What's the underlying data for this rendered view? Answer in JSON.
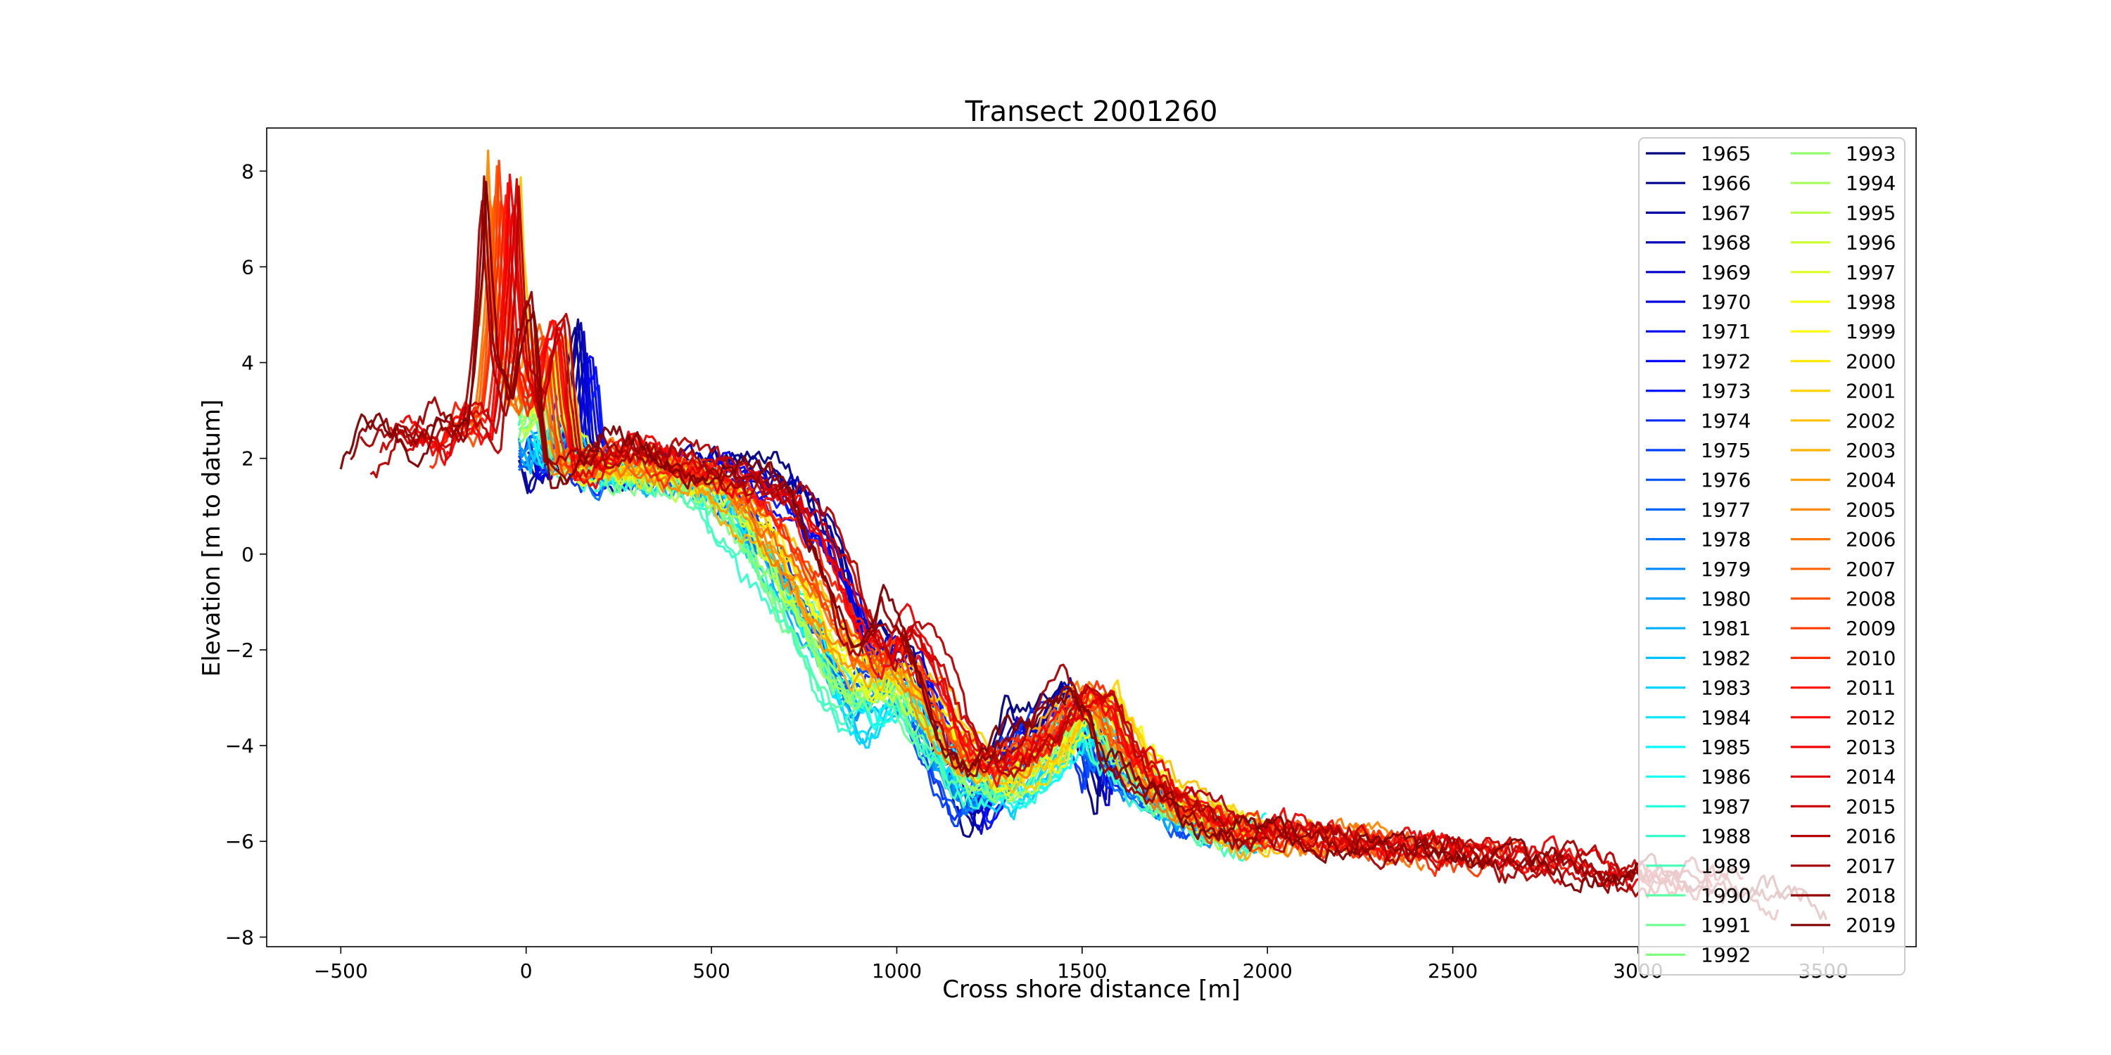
{
  "chart_data": {
    "type": "line",
    "title": "Transect 2001260",
    "xlabel": "Cross shore distance [m]",
    "ylabel": "Elevation [m to datum]",
    "xlim": [
      -700,
      3750
    ],
    "ylim": [
      -8.2,
      8.9
    ],
    "xticks": [
      -500,
      0,
      500,
      1000,
      1500,
      2000,
      2500,
      3000,
      3500
    ],
    "yticks": [
      -8,
      -6,
      -4,
      -2,
      0,
      2,
      4,
      6,
      8
    ],
    "xtick_labels": [
      "−500",
      "0",
      "500",
      "1000",
      "1500",
      "2000",
      "2500",
      "3000",
      "3500"
    ],
    "ytick_labels": [
      "−8",
      "−6",
      "−4",
      "−2",
      "0",
      "2",
      "4",
      "6",
      "8"
    ],
    "grid": false,
    "legend_position": "top-right",
    "legend_columns": 2,
    "colormap": "jet",
    "series_names": [
      "1965",
      "1966",
      "1967",
      "1968",
      "1969",
      "1970",
      "1971",
      "1972",
      "1973",
      "1974",
      "1975",
      "1976",
      "1977",
      "1978",
      "1979",
      "1980",
      "1981",
      "1982",
      "1983",
      "1984",
      "1985",
      "1986",
      "1987",
      "1988",
      "1989",
      "1990",
      "1991",
      "1992",
      "1993",
      "1994",
      "1995",
      "1996",
      "1997",
      "1998",
      "1999",
      "2000",
      "2001",
      "2002",
      "2003",
      "2004",
      "2005",
      "2006",
      "2007",
      "2008",
      "2009",
      "2010",
      "2011",
      "2012",
      "2013",
      "2014",
      "2015",
      "2016",
      "2017",
      "2018",
      "2019"
    ],
    "representative_profiles": {
      "early_years_1965_1975": {
        "x": [
          -20,
          0,
          50,
          100,
          120,
          140,
          160,
          200,
          300,
          500,
          650,
          750,
          850,
          900,
          950,
          1000,
          1050,
          1100,
          1150,
          1200,
          1250,
          1300,
          1350,
          1400,
          1450,
          1500,
          1550
        ],
        "y": [
          2.2,
          1.6,
          1.9,
          2.0,
          4.0,
          5.0,
          2.2,
          1.7,
          1.8,
          1.9,
          2.0,
          1.6,
          0.2,
          -1.6,
          -1.5,
          -2.2,
          -2.3,
          -3.8,
          -4.7,
          -5.9,
          -4.6,
          -3.2,
          -3.5,
          -3.1,
          -2.6,
          -4.0,
          -5.5
        ]
      },
      "middle_years_1980_1992": {
        "x": [
          -20,
          0,
          50,
          100,
          200,
          300,
          400,
          500,
          600,
          700,
          800,
          850,
          900,
          950,
          1000,
          1050,
          1100,
          1200,
          1300,
          1400,
          1500,
          1600,
          1700,
          1800,
          1900,
          2000
        ],
        "y": [
          2.4,
          2.0,
          2.3,
          2.0,
          1.7,
          1.6,
          1.5,
          1.2,
          0.0,
          -1.2,
          -2.8,
          -3.5,
          -3.8,
          -3.4,
          -2.8,
          -3.5,
          -4.3,
          -5.0,
          -5.2,
          -4.5,
          -3.6,
          -4.4,
          -5.2,
          -5.6,
          -5.9,
          -6.0
        ]
      },
      "late_1990s_2000s": {
        "x": [
          -20,
          0,
          50,
          100,
          200,
          300,
          400,
          500,
          600,
          700,
          800,
          900,
          1000,
          1100,
          1200,
          1300,
          1400,
          1500,
          1550,
          1600,
          1700,
          1800,
          1900,
          2000
        ],
        "y": [
          3.5,
          3.0,
          4.5,
          2.0,
          1.8,
          1.8,
          1.7,
          1.5,
          0.8,
          -0.5,
          -1.6,
          -2.4,
          -2.6,
          -3.4,
          -4.3,
          -4.6,
          -4.2,
          -3.2,
          -2.9,
          -3.7,
          -4.8,
          -5.4,
          -5.7,
          -6.0
        ]
      },
      "recent_years_2010_2019": {
        "x": [
          -500,
          -480,
          -450,
          -400,
          -350,
          -300,
          -250,
          -200,
          -150,
          -120,
          -100,
          -80,
          -70,
          -60,
          -40,
          -20,
          0,
          30,
          60,
          80,
          100,
          150,
          200,
          250,
          300,
          400,
          500,
          600,
          700,
          750,
          800,
          850,
          900,
          950,
          1000,
          1050,
          1100,
          1150,
          1200,
          1250,
          1300,
          1350,
          1400,
          1450,
          1500,
          1550,
          1600,
          1700,
          1800,
          1900,
          2000,
          2100,
          2200,
          2400,
          2600,
          2800,
          3000,
          3200,
          3400,
          3550
        ],
        "y": [
          1.4,
          1.7,
          1.9,
          2.6,
          2.5,
          2.4,
          2.1,
          2.9,
          2.7,
          2.6,
          4.0,
          6.0,
          8.1,
          6.2,
          4.0,
          3.6,
          3.0,
          4.5,
          5.2,
          3.0,
          1.8,
          1.7,
          2.1,
          2.5,
          2.3,
          2.0,
          1.8,
          1.7,
          1.7,
          1.3,
          0.5,
          -0.4,
          -1.5,
          -2.0,
          -1.0,
          -1.5,
          -2.5,
          -3.8,
          -4.2,
          -4.5,
          -4.0,
          -3.8,
          -3.6,
          -3.0,
          -2.8,
          -3.2,
          -4.2,
          -4.9,
          -5.4,
          -5.7,
          -5.8,
          -5.9,
          -6.0,
          -6.15,
          -6.3,
          -6.5,
          -6.7,
          -6.9,
          -7.1,
          -7.35
        ]
      }
    }
  }
}
